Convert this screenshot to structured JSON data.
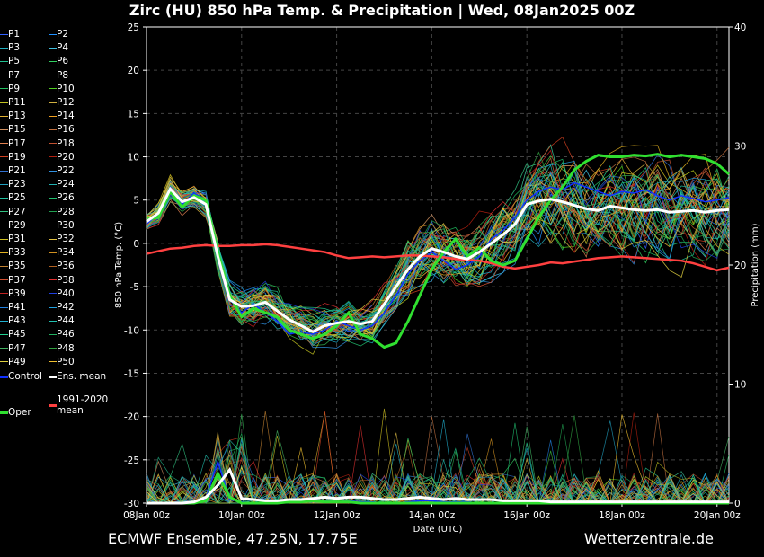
{
  "title": "Zirc  (HU)  850 hPa Temp. & Precipitation | Wed, 08Jan2025 00Z",
  "footer": {
    "left": "ECMWF Ensemble, 47.25N, 17.75E",
    "right": "Wetterzentrale.de"
  },
  "legend": {
    "members": [
      "P1",
      "P2",
      "P3",
      "P4",
      "P5",
      "P6",
      "P7",
      "P8",
      "P9",
      "P10",
      "P11",
      "P12",
      "P13",
      "P14",
      "P15",
      "P16",
      "P17",
      "P18",
      "P19",
      "P20",
      "P21",
      "P22",
      "P23",
      "P24",
      "P25",
      "P26",
      "P27",
      "P28",
      "P29",
      "P30",
      "P31",
      "P32",
      "P33",
      "P34",
      "P35",
      "P36",
      "P37",
      "P38",
      "P39",
      "P40",
      "P41",
      "P42",
      "P43",
      "P44",
      "P45",
      "P46",
      "P47",
      "P48",
      "P49",
      "P50"
    ],
    "member_colors": [
      "#3060ff",
      "#1e90ff",
      "#20b0c0",
      "#40c0e0",
      "#20c090",
      "#30d060",
      "#40d0a0",
      "#30b050",
      "#20c060",
      "#50d020",
      "#c0c020",
      "#d0b040",
      "#e0b030",
      "#f0a020",
      "#d09060",
      "#c07040",
      "#e08050",
      "#c05030",
      "#d04020",
      "#b02010",
      "#3070d0",
      "#3090e0",
      "#20a0c0",
      "#20b0b0",
      "#20c0a0",
      "#20c070",
      "#30c080",
      "#20a050",
      "#40c040",
      "#c0d020",
      "#d0c020",
      "#e0c040",
      "#e0b020",
      "#d09020",
      "#c08030",
      "#b06020",
      "#d05030",
      "#e03030",
      "#c02020",
      "#2040e0",
      "#2080e0",
      "#20a0e0",
      "#20b0d0",
      "#20c0b0",
      "#20d090",
      "#20b060",
      "#40b060",
      "#30a040",
      "#e0d040",
      "#f0c030"
    ],
    "control": "Control",
    "ens_mean": "Ens. mean",
    "clim_mean": "1991-2020\nmean",
    "oper": "Oper",
    "colors": {
      "control": "#1030ff",
      "ens_mean": "#ffffff",
      "clim_mean": "#ff4040",
      "oper": "#30e030"
    }
  },
  "chart_data": {
    "type": "line",
    "title": "Zirc  (HU)  850 hPa Temp. & Precipitation | Wed, 08Jan2025 00Z",
    "xlabel": "Date (UTC)",
    "ylabel": "850 hPa Temp. (°C)",
    "y2label": "Precipitation (mm)",
    "ylim": [
      -30,
      25
    ],
    "y2lim": [
      0,
      40
    ],
    "y_ticks": [
      25,
      20,
      15,
      10,
      5,
      0,
      -5,
      -10,
      -15,
      -20,
      -25,
      -30
    ],
    "y2_ticks": [
      0,
      10,
      20,
      30,
      40
    ],
    "x_ticks": [
      "08Jan 00z",
      "10Jan 00z",
      "12Jan 00z",
      "14Jan 00z",
      "16Jan 00z",
      "18Jan 00z",
      "20Jan 00z"
    ],
    "x_tick_hours": [
      0,
      48,
      96,
      144,
      192,
      240,
      288
    ],
    "x_range_hours": [
      0,
      294
    ],
    "grid": true,
    "series": [
      {
        "name": "Ens. mean",
        "x": [
          0,
          6,
          12,
          18,
          24,
          30,
          36,
          42,
          48,
          54,
          60,
          66,
          72,
          78,
          84,
          90,
          96,
          102,
          108,
          114,
          120,
          126,
          132,
          138,
          144,
          150,
          156,
          162,
          168,
          174,
          180,
          186,
          192,
          198,
          204,
          210,
          216,
          222,
          228,
          234,
          240,
          246,
          252,
          258,
          264,
          270,
          276,
          282,
          288,
          294
        ],
        "values": [
          2.5,
          3.5,
          6.3,
          4.8,
          5.3,
          4.5,
          -1.5,
          -6.5,
          -7.3,
          -7.2,
          -6.8,
          -7.8,
          -8.8,
          -9.5,
          -10.2,
          -9.5,
          -9.2,
          -9.0,
          -9.3,
          -9.0,
          -7.0,
          -5.0,
          -3.0,
          -1.5,
          -0.6,
          -1.0,
          -1.5,
          -1.8,
          -1.0,
          0.0,
          1.0,
          2.2,
          4.5,
          4.9,
          5.1,
          4.8,
          4.4,
          4.0,
          3.8,
          4.3,
          4.1,
          3.9,
          3.8,
          3.9,
          3.6,
          3.7,
          3.8,
          3.6,
          3.8,
          3.9
        ]
      },
      {
        "name": "Oper",
        "x": [
          0,
          6,
          12,
          18,
          24,
          30,
          36,
          42,
          48,
          54,
          60,
          66,
          72,
          78,
          84,
          90,
          96,
          102,
          108,
          114,
          120,
          126,
          132,
          138,
          144,
          150,
          156,
          162,
          168,
          174,
          180,
          186,
          192,
          198,
          204,
          210,
          216,
          222,
          228,
          234,
          240,
          246,
          252,
          258,
          264,
          270,
          276,
          282,
          288,
          294
        ],
        "values": [
          2.8,
          3.0,
          6.0,
          4.2,
          5.5,
          5.0,
          -1.0,
          -6.0,
          -8.5,
          -7.5,
          -8.0,
          -8.5,
          -10.0,
          -10.5,
          -11.0,
          -10.5,
          -9.5,
          -8.0,
          -10.5,
          -11.0,
          -12.0,
          -11.5,
          -9.0,
          -6.0,
          -3.0,
          -1.0,
          0.5,
          -1.5,
          -0.5,
          -2.0,
          -2.5,
          -2.0,
          0.5,
          3.0,
          5.0,
          6.5,
          8.5,
          9.5,
          10.2,
          10.0,
          10.0,
          10.2,
          10.1,
          10.3,
          10.0,
          10.2,
          10.0,
          9.8,
          9.2,
          8.0
        ]
      },
      {
        "name": "Control",
        "x": [
          0,
          6,
          12,
          18,
          24,
          30,
          36,
          42,
          48,
          54,
          60,
          66,
          72,
          78,
          84,
          90,
          96,
          102,
          108,
          114,
          120,
          126,
          132,
          138,
          144,
          150,
          156,
          162,
          168,
          174,
          180,
          186,
          192,
          198,
          204,
          210,
          216,
          222,
          228,
          234,
          240,
          246,
          252,
          258,
          264,
          270,
          276,
          282,
          288,
          294
        ],
        "values": [
          2.2,
          3.5,
          6.5,
          4.5,
          5.8,
          5.0,
          -1.5,
          -6.5,
          -8.0,
          -7.0,
          -8.0,
          -9.0,
          -10.5,
          -10.2,
          -10.5,
          -10.0,
          -9.0,
          -9.5,
          -10.0,
          -9.5,
          -8.0,
          -6.0,
          -3.5,
          -2.0,
          -1.0,
          -2.0,
          -3.0,
          -2.5,
          -1.5,
          0.5,
          1.5,
          3.0,
          5.0,
          6.0,
          6.5,
          6.2,
          7.0,
          6.5,
          6.0,
          5.5,
          6.0,
          5.8,
          6.2,
          5.5,
          5.0,
          5.5,
          5.2,
          4.8,
          5.0,
          5.3
        ]
      },
      {
        "name": "1991-2020 mean",
        "x": [
          0,
          6,
          12,
          18,
          24,
          30,
          36,
          42,
          48,
          54,
          60,
          66,
          72,
          78,
          84,
          90,
          96,
          102,
          108,
          114,
          120,
          126,
          132,
          138,
          144,
          150,
          156,
          162,
          168,
          174,
          180,
          186,
          192,
          198,
          204,
          210,
          216,
          222,
          228,
          234,
          240,
          246,
          252,
          258,
          264,
          270,
          276,
          282,
          288,
          294
        ],
        "values": [
          -1.2,
          -0.9,
          -0.6,
          -0.5,
          -0.3,
          -0.2,
          -0.3,
          -0.3,
          -0.2,
          -0.2,
          -0.1,
          -0.2,
          -0.4,
          -0.6,
          -0.8,
          -1.0,
          -1.4,
          -1.7,
          -1.6,
          -1.5,
          -1.6,
          -1.5,
          -1.4,
          -1.4,
          -1.5,
          -1.6,
          -1.8,
          -1.9,
          -2.0,
          -2.3,
          -2.7,
          -2.9,
          -2.7,
          -2.5,
          -2.2,
          -2.3,
          -2.1,
          -1.9,
          -1.7,
          -1.6,
          -1.5,
          -1.6,
          -1.7,
          -1.8,
          -1.9,
          -2.0,
          -2.3,
          -2.7,
          -3.1,
          -2.8
        ]
      }
    ],
    "precip_series": [
      {
        "name": "Ens. mean",
        "x": [
          0,
          6,
          12,
          18,
          24,
          30,
          36,
          42,
          48,
          54,
          60,
          66,
          72,
          78,
          84,
          90,
          96,
          102,
          108,
          114,
          120,
          126,
          132,
          138,
          144,
          150,
          156,
          162,
          168,
          174,
          180,
          186,
          192,
          198,
          204,
          210,
          216,
          222,
          228,
          234,
          240,
          246,
          252,
          258,
          264,
          270,
          276,
          282,
          288,
          294
        ],
        "values": [
          0,
          0,
          0,
          0,
          0.1,
          0.5,
          1.5,
          2.8,
          0.4,
          0.3,
          0.2,
          0.2,
          0.3,
          0.3,
          0.4,
          0.5,
          0.4,
          0.5,
          0.5,
          0.4,
          0.3,
          0.3,
          0.4,
          0.5,
          0.4,
          0.3,
          0.4,
          0.3,
          0.3,
          0.3,
          0.2,
          0.2,
          0.2,
          0.2,
          0.1,
          0.1,
          0.1,
          0.1,
          0.1,
          0.1,
          0.1,
          0.1,
          0.1,
          0.1,
          0.1,
          0.1,
          0.1,
          0.1,
          0.1,
          0.1
        ]
      },
      {
        "name": "Control",
        "x": [
          0,
          6,
          12,
          18,
          24,
          30,
          36,
          42,
          48,
          54,
          60,
          66,
          72,
          78,
          84,
          90,
          96,
          102,
          108,
          114,
          120,
          126,
          132,
          138,
          144,
          150,
          156,
          162,
          168,
          174,
          180,
          186,
          192,
          198,
          204,
          210,
          216,
          222,
          228,
          234,
          240,
          246,
          252,
          258,
          264,
          270,
          276,
          282,
          288,
          294
        ],
        "values": [
          0,
          0,
          0,
          0,
          0,
          0.4,
          3.5,
          0.3,
          0.1,
          0,
          0,
          0.1,
          0.1,
          0.2,
          0.3,
          0.2,
          0.1,
          0.2,
          0.1,
          0.1,
          0,
          0,
          0.1,
          0.2,
          0.2,
          0.1,
          0.1,
          0.1,
          0,
          0,
          0,
          0,
          0,
          0,
          0,
          0,
          0,
          0,
          0,
          0,
          0,
          0,
          0,
          0,
          0,
          0,
          0,
          0,
          0,
          0
        ]
      },
      {
        "name": "Oper",
        "x": [
          0,
          6,
          12,
          18,
          24,
          30,
          36,
          42,
          48,
          54,
          60,
          66,
          72,
          78,
          84,
          90,
          96,
          102,
          108,
          114,
          120,
          126,
          132,
          138,
          144,
          150,
          156,
          162,
          168,
          174,
          180,
          186,
          192,
          198,
          204,
          210,
          216,
          222,
          228,
          234,
          240,
          246,
          252,
          258,
          264,
          270,
          276,
          282,
          288,
          294
        ],
        "values": [
          0,
          0,
          0,
          0,
          0,
          0.2,
          2.5,
          0.5,
          0,
          0,
          0,
          0,
          0.1,
          0.1,
          0.2,
          0.1,
          0.1,
          0.1,
          0,
          0,
          0,
          0,
          0,
          0,
          0,
          0,
          0,
          0,
          0,
          0,
          0,
          0,
          0,
          0,
          0,
          0,
          0,
          0,
          0,
          0,
          0,
          0,
          0,
          0,
          0,
          0,
          0,
          0,
          0,
          0
        ]
      }
    ]
  }
}
